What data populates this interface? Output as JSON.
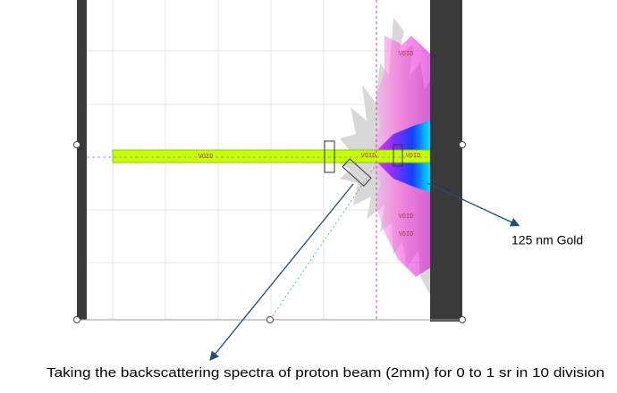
{
  "regions": [
    {
      "label": "VOID"
    },
    {
      "label": "VOID"
    },
    {
      "label": "VOID"
    },
    {
      "label": "VOID"
    },
    {
      "label": "VOID"
    },
    {
      "label": "VOID"
    }
  ],
  "annotations": {
    "target": "125 nm Gold",
    "caption": "Taking the backscattering spectra of proton beam (2mm)  for 0 to 1 sr in 10 division"
  }
}
